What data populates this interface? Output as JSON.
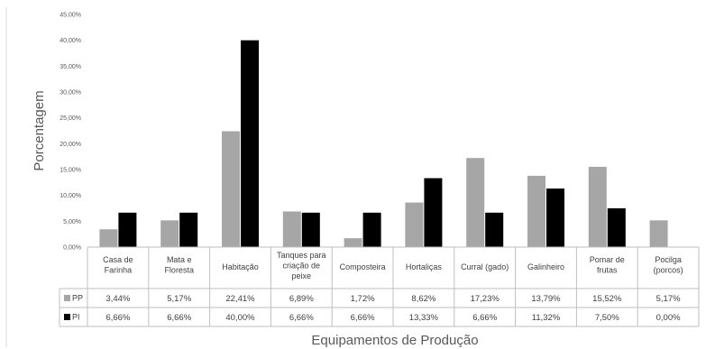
{
  "chart_data": {
    "type": "bar",
    "title": "",
    "ylabel": "Porcentagem",
    "xlabel": "Equipamentos de Produção",
    "ylim": [
      0,
      45
    ],
    "yticks": [
      "0,00%",
      "5,00%",
      "10,00%",
      "15,00%",
      "20,00%",
      "25,00%",
      "30,00%",
      "35,00%",
      "40,00%",
      "45,00%"
    ],
    "categories": [
      [
        "Casa de",
        "Farinha"
      ],
      [
        "Mata e",
        "Floresta"
      ],
      [
        "Habitação"
      ],
      [
        "Tanques para",
        "criação de",
        "peixe"
      ],
      [
        "Composteira"
      ],
      [
        "Hortaliças"
      ],
      [
        "Curral (gado)"
      ],
      [
        "Galinheiro"
      ],
      [
        "Pomar de",
        "frutas"
      ],
      [
        "Pocilga",
        "(porcos)"
      ]
    ],
    "series": [
      {
        "name": "PP",
        "color": "#a6a6a6",
        "values": [
          3.44,
          5.17,
          22.41,
          6.89,
          1.72,
          8.62,
          17.23,
          13.79,
          15.52,
          5.17
        ],
        "labels": [
          "3,44%",
          "5,17%",
          "22,41%",
          "6,89%",
          "1,72%",
          "8,62%",
          "17,23%",
          "13,79%",
          "15,52%",
          "5,17%"
        ]
      },
      {
        "name": "PI",
        "color": "#000000",
        "values": [
          6.66,
          6.66,
          40.0,
          6.66,
          6.66,
          13.33,
          6.66,
          11.32,
          7.5,
          0.0
        ],
        "labels": [
          "6,66%",
          "6,66%",
          "40,00%",
          "6,66%",
          "6,66%",
          "13,33%",
          "6,66%",
          "11,32%",
          "7,50%",
          "0,00%"
        ]
      }
    ],
    "grid": false,
    "legend": "data-table"
  }
}
